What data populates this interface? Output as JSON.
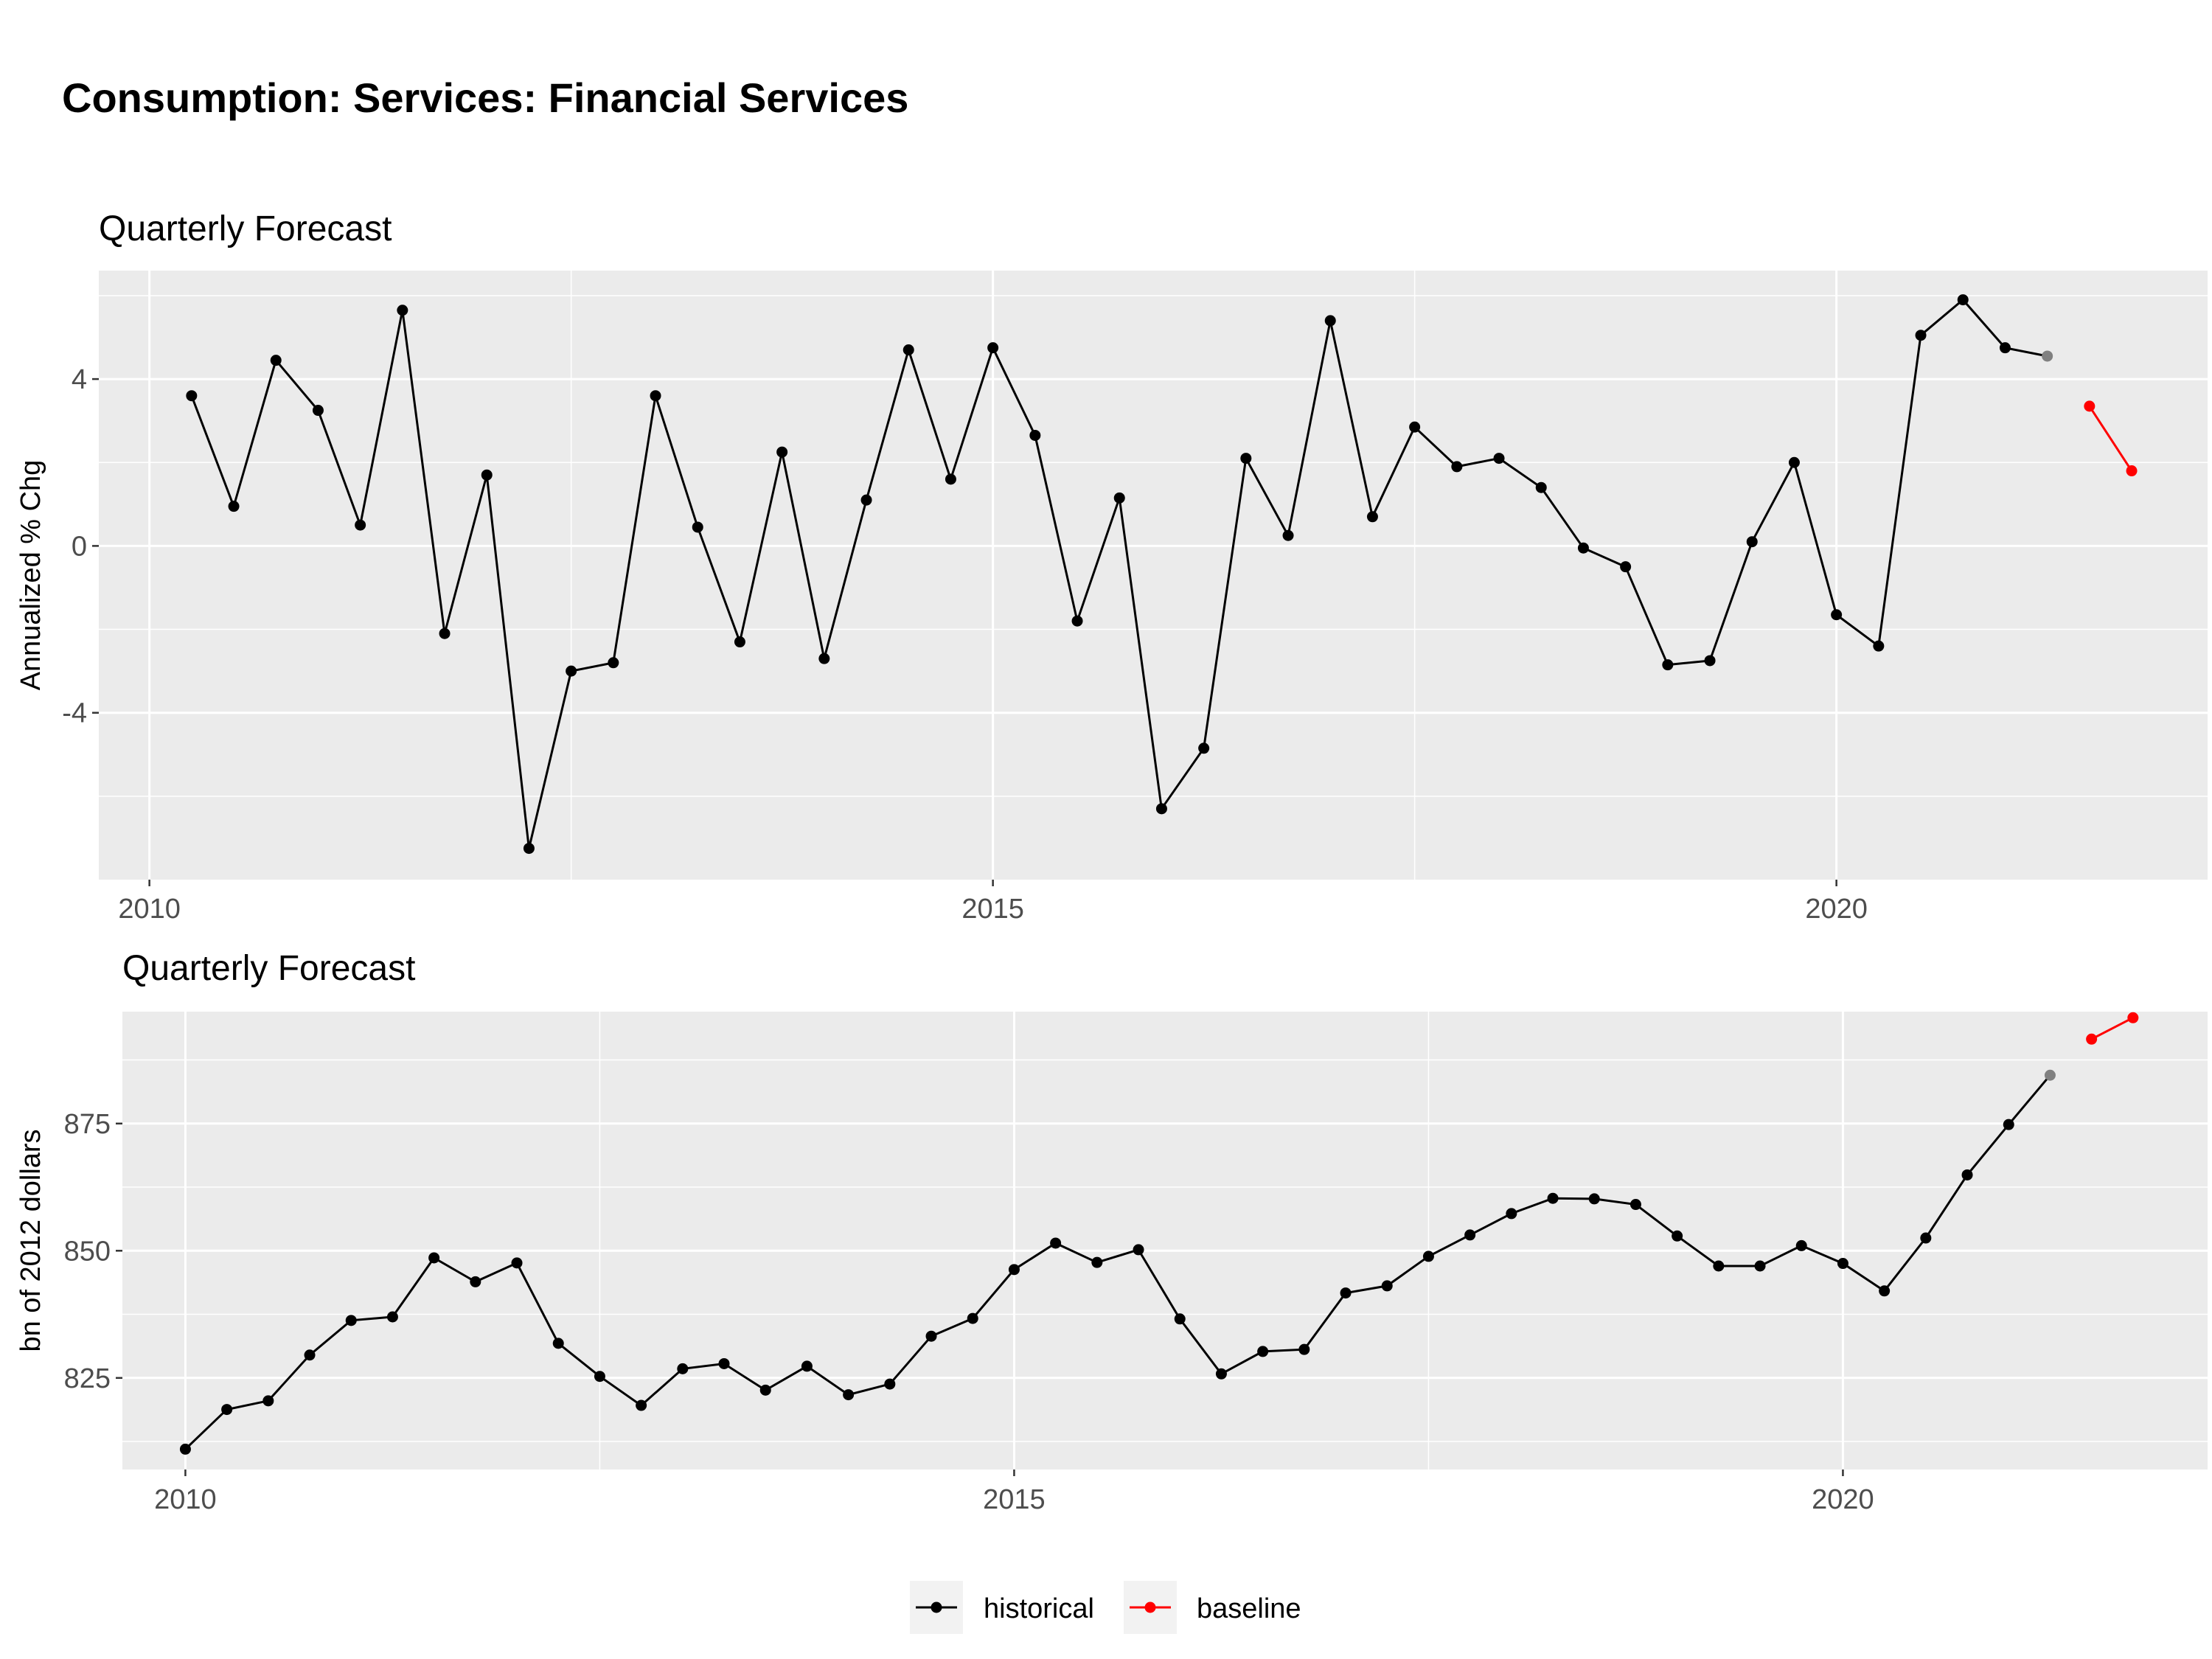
{
  "title": "Consumption: Services: Financial Services",
  "chart_data": [
    {
      "type": "line",
      "title": "Quarterly Forecast",
      "ylabel": "Annualized % Chg",
      "xlabel": "",
      "x_ticks": [
        2010,
        2015,
        2020
      ],
      "y_ticks": [
        -4,
        0,
        4
      ],
      "xlim": [
        2009.7,
        2022.2
      ],
      "ylim": [
        -8.0,
        6.6
      ],
      "grid": true,
      "series": [
        {
          "name": "historical",
          "color": "#000000",
          "x": [
            2010.25,
            2010.5,
            2010.75,
            2011.0,
            2011.25,
            2011.5,
            2011.75,
            2012.0,
            2012.25,
            2012.5,
            2012.75,
            2013.0,
            2013.25,
            2013.5,
            2013.75,
            2014.0,
            2014.25,
            2014.5,
            2014.75,
            2015.0,
            2015.25,
            2015.5,
            2015.75,
            2016.0,
            2016.25,
            2016.5,
            2016.75,
            2017.0,
            2017.25,
            2017.5,
            2017.75,
            2018.0,
            2018.25,
            2018.5,
            2018.75,
            2019.0,
            2019.25,
            2019.5,
            2019.75,
            2020.0,
            2020.25,
            2020.5,
            2020.75,
            2021.0,
            2021.25
          ],
          "values": [
            3.6,
            0.95,
            4.45,
            3.25,
            0.5,
            5.65,
            -2.1,
            1.7,
            -7.25,
            -3.0,
            -2.8,
            3.6,
            0.45,
            -2.3,
            2.25,
            -2.7,
            1.1,
            4.7,
            1.6,
            4.75,
            2.65,
            -1.8,
            1.15,
            -6.3,
            -4.85,
            2.1,
            0.25,
            5.4,
            0.7,
            2.85,
            1.9,
            2.1,
            1.4,
            -0.05,
            -0.5,
            -2.85,
            -2.75,
            0.1,
            2.0,
            -1.65,
            -2.4,
            5.05,
            5.9,
            4.75,
            4.55
          ]
        },
        {
          "name": "baseline",
          "color": "#ff0000",
          "x": [
            2021.5,
            2021.75
          ],
          "values": [
            3.35,
            1.8
          ]
        }
      ]
    },
    {
      "type": "line",
      "title": "Quarterly Forecast",
      "ylabel": "bn of 2012 dollars",
      "xlabel": "",
      "x_ticks": [
        2010,
        2015,
        2020
      ],
      "y_ticks": [
        825,
        850,
        875
      ],
      "xlim": [
        2009.62,
        2022.2
      ],
      "ylim": [
        807.0,
        897.0
      ],
      "grid": true,
      "series": [
        {
          "name": "historical",
          "color": "#000000",
          "x": [
            2010.0,
            2010.25,
            2010.5,
            2010.75,
            2011.0,
            2011.25,
            2011.5,
            2011.75,
            2012.0,
            2012.25,
            2012.5,
            2012.75,
            2013.0,
            2013.25,
            2013.5,
            2013.75,
            2014.0,
            2014.25,
            2014.5,
            2014.75,
            2015.0,
            2015.25,
            2015.5,
            2015.75,
            2016.0,
            2016.25,
            2016.5,
            2016.75,
            2017.0,
            2017.25,
            2017.5,
            2017.75,
            2018.0,
            2018.25,
            2018.5,
            2018.75,
            2019.0,
            2019.25,
            2019.5,
            2019.75,
            2020.0,
            2020.25,
            2020.5,
            2020.75,
            2021.0,
            2021.25
          ],
          "values": [
            811.0,
            818.8,
            820.5,
            829.5,
            836.3,
            837.0,
            848.6,
            843.9,
            847.6,
            831.8,
            825.3,
            819.6,
            826.8,
            827.8,
            822.6,
            827.3,
            821.7,
            823.8,
            833.2,
            836.7,
            846.3,
            851.5,
            847.7,
            850.2,
            836.6,
            825.8,
            830.2,
            830.6,
            841.7,
            843.1,
            848.9,
            853.1,
            857.3,
            860.3,
            860.2,
            859.1,
            852.9,
            847.0,
            847.0,
            851.0,
            847.5,
            842.1,
            852.5,
            864.9,
            874.8,
            884.5
          ]
        },
        {
          "name": "baseline",
          "color": "#ff0000",
          "x": [
            2021.5,
            2021.75
          ],
          "values": [
            891.6,
            895.8
          ]
        }
      ]
    }
  ],
  "legend": {
    "position": "bottom",
    "items": [
      {
        "label": "historical",
        "color": "#000000"
      },
      {
        "label": "baseline",
        "color": "#ff0000"
      }
    ]
  },
  "colors": {
    "panel_background": "#ebebeb",
    "grid": "#ffffff",
    "last_historical_point": "#808080"
  }
}
